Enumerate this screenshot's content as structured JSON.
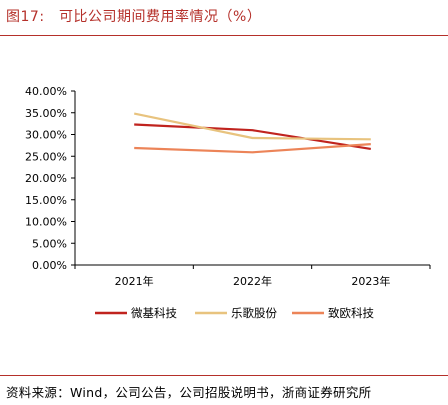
{
  "figure": {
    "title": "图17:　可比公司期间费用率情况（%）",
    "source": "资料来源：Wind，公司公告，公司招股说明书，浙商证券研究所"
  },
  "chart_data": {
    "type": "line",
    "title": "可比公司期间费用率情况（%）",
    "xlabel": "",
    "ylabel": "",
    "categories": [
      "2021年",
      "2022年",
      "2023年"
    ],
    "ylim": [
      0,
      40
    ],
    "yticks": [
      0,
      5,
      10,
      15,
      20,
      25,
      30,
      35,
      40
    ],
    "ytick_labels": [
      "0.00%",
      "5.00%",
      "10.00%",
      "15.00%",
      "20.00%",
      "25.00%",
      "30.00%",
      "35.00%",
      "40.00%"
    ],
    "grid": false,
    "legend_position": "bottom",
    "series": [
      {
        "name": "微基科技",
        "values": [
          32.3,
          31.0,
          26.7
        ],
        "color": "#c0231e"
      },
      {
        "name": "乐歌股份",
        "values": [
          34.8,
          29.2,
          28.9
        ],
        "color": "#e8c37e"
      },
      {
        "name": "致欧科技",
        "values": [
          26.9,
          25.9,
          27.8
        ],
        "color": "#ec8458"
      }
    ]
  }
}
